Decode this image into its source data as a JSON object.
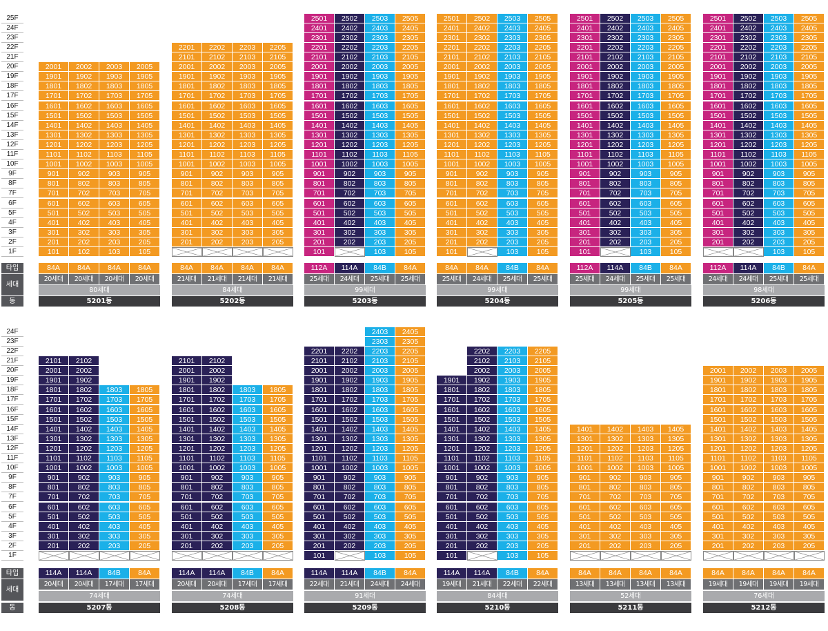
{
  "labels": {
    "type": "타입",
    "units": "세대",
    "dong": "동"
  },
  "colors": {
    "o": "#f39a22",
    "b": "#1bb0e8",
    "m": "#c7257f",
    "n": "#2a2157"
  },
  "rows": [
    {
      "floors": 25,
      "buildings": [
        {
          "name": "5201동",
          "total": "80세대",
          "types": [
            "84A",
            "84A",
            "84A",
            "84A"
          ],
          "tcolors": [
            "o",
            "o",
            "o",
            "o"
          ],
          "units": [
            "20세대",
            "20세대",
            "20세대",
            "20세대"
          ],
          "cols": [
            {
              "max": 20,
              "c": "o",
              "x1": false,
              "suffix": "01"
            },
            {
              "max": 20,
              "c": "o",
              "x1": false,
              "suffix": "02"
            },
            {
              "max": 20,
              "c": "o",
              "x1": false,
              "suffix": "03"
            },
            {
              "max": 20,
              "c": "o",
              "x1": false,
              "suffix": "05"
            }
          ]
        },
        {
          "name": "5202동",
          "total": "84세대",
          "types": [
            "84A",
            "84A",
            "84A",
            "84A"
          ],
          "tcolors": [
            "o",
            "o",
            "o",
            "o"
          ],
          "units": [
            "21세대",
            "21세대",
            "21세대",
            "21세대"
          ],
          "cols": [
            {
              "max": 22,
              "c": "o",
              "x1": true,
              "suffix": "01"
            },
            {
              "max": 22,
              "c": "o",
              "x1": true,
              "suffix": "02"
            },
            {
              "max": 22,
              "c": "o",
              "x1": true,
              "suffix": "03"
            },
            {
              "max": 22,
              "c": "o",
              "x1": true,
              "suffix": "05"
            }
          ]
        },
        {
          "name": "5203동",
          "total": "99세대",
          "types": [
            "112A",
            "114A",
            "84B",
            "84A"
          ],
          "tcolors": [
            "m",
            "n",
            "b",
            "o"
          ],
          "units": [
            "25세대",
            "24세대",
            "25세대",
            "25세대"
          ],
          "cols": [
            {
              "max": 25,
              "c": "m",
              "x1": false,
              "suffix": "01"
            },
            {
              "max": 25,
              "c": "n",
              "x1": true,
              "suffix": "02"
            },
            {
              "max": 25,
              "c": "b",
              "x1": false,
              "suffix": "03"
            },
            {
              "max": 25,
              "c": "o",
              "x1": false,
              "suffix": "05"
            }
          ]
        },
        {
          "name": "5204동",
          "total": "99세대",
          "types": [
            "84A",
            "84A",
            "84B",
            "84A"
          ],
          "tcolors": [
            "o",
            "o",
            "b",
            "o"
          ],
          "units": [
            "25세대",
            "24세대",
            "25세대",
            "25세대"
          ],
          "cols": [
            {
              "max": 25,
              "c": "o",
              "x1": false,
              "suffix": "01"
            },
            {
              "max": 25,
              "c": "o",
              "x1": true,
              "suffix": "02"
            },
            {
              "max": 25,
              "c": "b",
              "x1": false,
              "suffix": "03"
            },
            {
              "max": 25,
              "c": "o",
              "x1": false,
              "suffix": "05"
            }
          ]
        },
        {
          "name": "5205동",
          "total": "99세대",
          "types": [
            "112A",
            "114A",
            "84B",
            "84A"
          ],
          "tcolors": [
            "m",
            "n",
            "b",
            "o"
          ],
          "units": [
            "25세대",
            "24세대",
            "25세대",
            "25세대"
          ],
          "cols": [
            {
              "max": 25,
              "c": "m",
              "x1": false,
              "suffix": "01"
            },
            {
              "max": 25,
              "c": "n",
              "x1": true,
              "suffix": "02"
            },
            {
              "max": 25,
              "c": "b",
              "x1": false,
              "suffix": "03"
            },
            {
              "max": 25,
              "c": "o",
              "x1": false,
              "suffix": "05"
            }
          ]
        },
        {
          "name": "5206동",
          "total": "98세대",
          "types": [
            "112A",
            "114A",
            "84B",
            "84A"
          ],
          "tcolors": [
            "m",
            "n",
            "b",
            "o"
          ],
          "units": [
            "24세대",
            "24세대",
            "25세대",
            "25세대"
          ],
          "cols": [
            {
              "max": 25,
              "c": "m",
              "x1": true,
              "suffix": "01"
            },
            {
              "max": 25,
              "c": "n",
              "x1": true,
              "suffix": "02"
            },
            {
              "max": 25,
              "c": "b",
              "x1": false,
              "suffix": "03"
            },
            {
              "max": 25,
              "c": "o",
              "x1": false,
              "suffix": "05"
            }
          ]
        }
      ]
    },
    {
      "floors": 24,
      "buildings": [
        {
          "name": "5207동",
          "total": "74세대",
          "types": [
            "114A",
            "114A",
            "84B",
            "84A"
          ],
          "tcolors": [
            "n",
            "n",
            "b",
            "o"
          ],
          "units": [
            "20세대",
            "20세대",
            "17세대",
            "17세대"
          ],
          "cols": [
            {
              "max": 21,
              "c": "n",
              "x1": true,
              "suffix": "01"
            },
            {
              "max": 21,
              "c": "n",
              "x1": true,
              "suffix": "02"
            },
            {
              "max": 18,
              "c": "b",
              "x1": true,
              "suffix": "03"
            },
            {
              "max": 18,
              "c": "o",
              "x1": true,
              "suffix": "05"
            }
          ]
        },
        {
          "name": "5208동",
          "total": "74세대",
          "types": [
            "114A",
            "114A",
            "84B",
            "84A"
          ],
          "tcolors": [
            "n",
            "n",
            "b",
            "o"
          ],
          "units": [
            "20세대",
            "20세대",
            "17세대",
            "17세대"
          ],
          "cols": [
            {
              "max": 21,
              "c": "n",
              "x1": true,
              "suffix": "01"
            },
            {
              "max": 21,
              "c": "n",
              "x1": true,
              "suffix": "02"
            },
            {
              "max": 18,
              "c": "b",
              "x1": true,
              "suffix": "03"
            },
            {
              "max": 18,
              "c": "o",
              "x1": true,
              "suffix": "05"
            }
          ]
        },
        {
          "name": "5209동",
          "total": "91세대",
          "types": [
            "114A",
            "114A",
            "84B",
            "84A"
          ],
          "tcolors": [
            "n",
            "n",
            "b",
            "o"
          ],
          "units": [
            "22세대",
            "21세대",
            "24세대",
            "24세대"
          ],
          "cols": [
            {
              "max": 22,
              "c": "n",
              "x1": false,
              "suffix": "01"
            },
            {
              "max": 22,
              "c": "n",
              "x1": true,
              "suffix": "02"
            },
            {
              "max": 24,
              "c": "b",
              "x1": false,
              "suffix": "03"
            },
            {
              "max": 24,
              "c": "o",
              "x1": false,
              "suffix": "05"
            }
          ]
        },
        {
          "name": "5210동",
          "total": "84세대",
          "types": [
            "114A",
            "114A",
            "84B",
            "84A"
          ],
          "tcolors": [
            "n",
            "n",
            "b",
            "o"
          ],
          "units": [
            "19세대",
            "21세대",
            "22세대",
            "22세대"
          ],
          "cols": [
            {
              "max": 19,
              "c": "n",
              "x1": false,
              "suffix": "01"
            },
            {
              "max": 22,
              "c": "n",
              "x1": true,
              "suffix": "02"
            },
            {
              "max": 22,
              "c": "b",
              "x1": false,
              "suffix": "03"
            },
            {
              "max": 22,
              "c": "o",
              "x1": false,
              "suffix": "05"
            }
          ]
        },
        {
          "name": "5211동",
          "total": "52세대",
          "types": [
            "84A",
            "84A",
            "84A",
            "84A"
          ],
          "tcolors": [
            "o",
            "o",
            "o",
            "o"
          ],
          "units": [
            "13세대",
            "13세대",
            "13세대",
            "13세대"
          ],
          "cols": [
            {
              "max": 14,
              "c": "o",
              "x1": true,
              "suffix": "01"
            },
            {
              "max": 14,
              "c": "o",
              "x1": true,
              "suffix": "02"
            },
            {
              "max": 14,
              "c": "o",
              "x1": true,
              "suffix": "03"
            },
            {
              "max": 14,
              "c": "o",
              "x1": true,
              "suffix": "05"
            }
          ]
        },
        {
          "name": "5212동",
          "total": "76세대",
          "types": [
            "84A",
            "84A",
            "84A",
            "84A"
          ],
          "tcolors": [
            "o",
            "o",
            "o",
            "o"
          ],
          "units": [
            "19세대",
            "19세대",
            "19세대",
            "19세대"
          ],
          "cols": [
            {
              "max": 20,
              "c": "o",
              "x1": true,
              "suffix": "01"
            },
            {
              "max": 20,
              "c": "o",
              "x1": true,
              "suffix": "02"
            },
            {
              "max": 20,
              "c": "o",
              "x1": true,
              "suffix": "03"
            },
            {
              "max": 20,
              "c": "o",
              "x1": true,
              "suffix": "05"
            }
          ]
        }
      ]
    }
  ]
}
